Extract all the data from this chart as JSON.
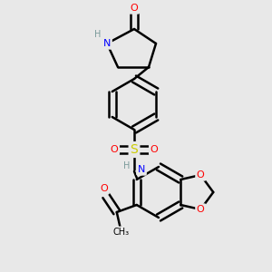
{
  "background_color": "#e8e8e8",
  "atom_colors": {
    "C": "#000000",
    "H": "#7a9a9a",
    "N": "#0000ff",
    "O": "#ff0000",
    "S": "#cccc00"
  },
  "bond_color": "#000000",
  "bond_width": 1.8,
  "font_size_atom": 8
}
